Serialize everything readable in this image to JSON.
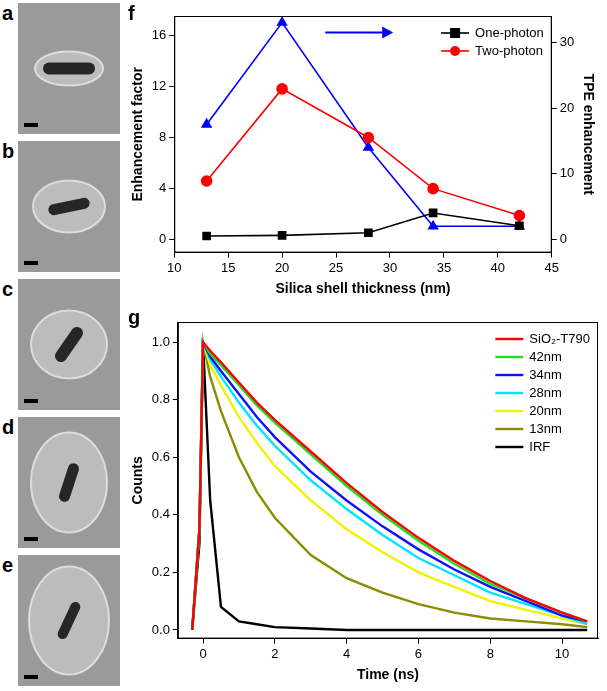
{
  "images": [
    {
      "label": "a"
    },
    {
      "label": "b"
    },
    {
      "label": "c"
    },
    {
      "label": "d"
    },
    {
      "label": "e"
    }
  ],
  "chart_data": [
    {
      "panel": "f",
      "type": "line",
      "x_label": "Silica shell thickness (nm)",
      "y_label": "Enhancement factor",
      "y2_label": "TPE enhancement",
      "x": [
        13,
        20,
        28,
        34,
        42
      ],
      "series": [
        {
          "name": "One-photon",
          "color": "#000000",
          "marker": "square",
          "line_style": "solid",
          "values": [
            0.3,
            0.35,
            0.55,
            2.1,
            1.1
          ]
        },
        {
          "name": "Two-photon",
          "color": "#ff0000",
          "marker": "circle",
          "line_style": "solid",
          "values": [
            4.6,
            11.8,
            8.0,
            4.0,
            1.9
          ]
        },
        {
          "color": "#0000ff",
          "marker": "triangle",
          "line_style": "solid",
          "axis": "y2",
          "values": [
            17.5,
            33,
            14,
            2,
            2
          ]
        }
      ],
      "xlim": [
        10,
        45
      ],
      "xticks": [
        10,
        15,
        20,
        25,
        30,
        35,
        40,
        45
      ],
      "ylim": [
        -1,
        17.5
      ],
      "yticks": [
        0,
        4,
        8,
        12,
        16
      ],
      "y2lim": [
        -2,
        34
      ],
      "y2ticks": [
        0,
        10,
        20,
        30
      ],
      "grid": false,
      "legend": "upper right"
    },
    {
      "panel": "g",
      "type": "line",
      "x_label": "Time (ns)",
      "y_label": "Counts",
      "x": [
        -0.3,
        -0.1,
        0,
        0.2,
        0.5,
        1,
        1.5,
        2,
        3,
        4,
        5,
        6,
        7,
        8,
        9,
        10,
        10.7
      ],
      "series": [
        {
          "name": "SiO₂-T790",
          "color": "#ff0000",
          "marker": "none",
          "line_style": "solid",
          "values": [
            0,
            0.35,
            1.0,
            0.97,
            0.93,
            0.86,
            0.79,
            0.73,
            0.62,
            0.51,
            0.41,
            0.32,
            0.24,
            0.17,
            0.11,
            0.06,
            0.03
          ]
        },
        {
          "name": "42nm",
          "color": "#22dd22",
          "marker": "none",
          "line_style": "solid",
          "values": [
            0,
            0.35,
            1.0,
            0.96,
            0.92,
            0.85,
            0.78,
            0.72,
            0.61,
            0.5,
            0.4,
            0.31,
            0.23,
            0.16,
            0.11,
            0.06,
            0.03
          ]
        },
        {
          "name": "34nm",
          "color": "#1010ff",
          "marker": "none",
          "line_style": "solid",
          "values": [
            0,
            0.35,
            1.0,
            0.95,
            0.9,
            0.82,
            0.74,
            0.67,
            0.55,
            0.45,
            0.36,
            0.28,
            0.21,
            0.15,
            0.1,
            0.05,
            0.03
          ]
        },
        {
          "name": "28nm",
          "color": "#00e5ff",
          "marker": "none",
          "line_style": "solid",
          "values": [
            0,
            0.35,
            1.0,
            0.94,
            0.88,
            0.79,
            0.71,
            0.64,
            0.52,
            0.42,
            0.33,
            0.25,
            0.19,
            0.13,
            0.09,
            0.05,
            0.02
          ]
        },
        {
          "name": "20nm",
          "color": "#f2f200",
          "marker": "none",
          "line_style": "solid",
          "values": [
            0,
            0.35,
            1.0,
            0.92,
            0.85,
            0.74,
            0.65,
            0.57,
            0.45,
            0.35,
            0.27,
            0.2,
            0.15,
            0.1,
            0.07,
            0.04,
            0.02
          ]
        },
        {
          "name": "13nm",
          "color": "#8c8c00",
          "marker": "none",
          "line_style": "solid",
          "values": [
            0,
            0.35,
            1.0,
            0.88,
            0.76,
            0.6,
            0.48,
            0.39,
            0.26,
            0.18,
            0.13,
            0.09,
            0.06,
            0.04,
            0.03,
            0.02,
            0.01
          ]
        },
        {
          "name": "IRF",
          "color": "#000000",
          "marker": "none",
          "line_style": "solid",
          "values": [
            0,
            0.3,
            1.0,
            0.45,
            0.08,
            0.03,
            0.02,
            0.01,
            0.005,
            0,
            0,
            0,
            0,
            0,
            0,
            0,
            0
          ]
        }
      ],
      "xlim": [
        -0.7,
        11
      ],
      "xticks": [
        0,
        2,
        4,
        6,
        8,
        10
      ],
      "ylim": [
        -0.03,
        1.07
      ],
      "yticks": [
        {
          "value": 0,
          "label": "0.0"
        },
        {
          "value": 0.2,
          "label": "0.2"
        },
        {
          "value": 0.4,
          "label": "0.4"
        },
        {
          "value": 0.6,
          "label": "0.6"
        },
        {
          "value": 0.8,
          "label": "0.8"
        },
        {
          "value": 1.0,
          "label": "1.0"
        }
      ],
      "grid": false,
      "legend": "upper right"
    }
  ]
}
